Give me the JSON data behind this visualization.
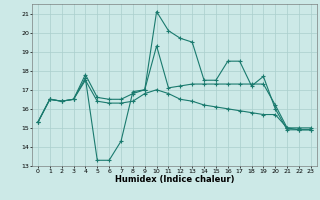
{
  "title": "",
  "xlabel": "Humidex (Indice chaleur)",
  "xlim": [
    -0.5,
    23.5
  ],
  "ylim": [
    13,
    21.5
  ],
  "yticks": [
    13,
    14,
    15,
    16,
    17,
    18,
    19,
    20,
    21
  ],
  "xticks": [
    0,
    1,
    2,
    3,
    4,
    5,
    6,
    7,
    8,
    9,
    10,
    11,
    12,
    13,
    14,
    15,
    16,
    17,
    18,
    19,
    20,
    21,
    22,
    23
  ],
  "bg_color": "#cce9e7",
  "grid_color": "#aacfcd",
  "line_color": "#1a7a6e",
  "series": [
    {
      "x": [
        0,
        1,
        2,
        3,
        4,
        5,
        6,
        7,
        8,
        9,
        10,
        11,
        12,
        13,
        14,
        15,
        16,
        17,
        18,
        19,
        20,
        21,
        22,
        23
      ],
      "y": [
        15.3,
        16.5,
        16.4,
        16.5,
        17.6,
        13.3,
        13.3,
        14.3,
        16.9,
        17.0,
        21.1,
        20.1,
        19.7,
        19.5,
        17.5,
        17.5,
        18.5,
        18.5,
        17.2,
        17.7,
        16.0,
        14.9,
        14.9,
        14.9
      ]
    },
    {
      "x": [
        0,
        1,
        2,
        3,
        4,
        5,
        6,
        7,
        8,
        9,
        10,
        11,
        12,
        13,
        14,
        15,
        16,
        17,
        18,
        19,
        20,
        21,
        22,
        23
      ],
      "y": [
        15.3,
        16.5,
        16.4,
        16.5,
        17.8,
        16.6,
        16.5,
        16.5,
        16.8,
        17.0,
        19.3,
        17.1,
        17.2,
        17.3,
        17.3,
        17.3,
        17.3,
        17.3,
        17.3,
        17.3,
        16.2,
        15.0,
        15.0,
        15.0
      ]
    },
    {
      "x": [
        0,
        1,
        2,
        3,
        4,
        5,
        6,
        7,
        8,
        9,
        10,
        11,
        12,
        13,
        14,
        15,
        16,
        17,
        18,
        19,
        20,
        21,
        22,
        23
      ],
      "y": [
        15.3,
        16.5,
        16.4,
        16.5,
        17.5,
        16.4,
        16.3,
        16.3,
        16.4,
        16.8,
        17.0,
        16.8,
        16.5,
        16.4,
        16.2,
        16.1,
        16.0,
        15.9,
        15.8,
        15.7,
        15.7,
        15.0,
        14.9,
        14.9
      ]
    }
  ]
}
